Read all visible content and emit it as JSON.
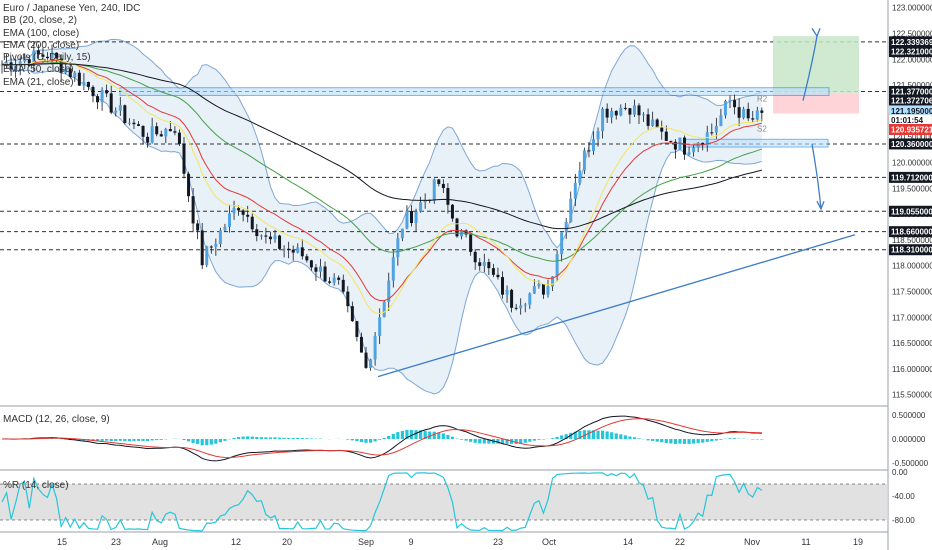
{
  "chart_data": {
    "type": "candlestick",
    "title": "Euro / Japanese Yen, 240, IDC",
    "indicators": [
      "BB (20, close, 2)",
      "EMA (100, close)",
      "EMA (200, close)",
      "Pivots (C, Daily, 15)",
      "EMA (50, close)",
      "EMA (21, close)"
    ],
    "price_axis": {
      "ylim": [
        115.3,
        123.15
      ],
      "ticks": [
        "123.000000",
        "122.500000",
        "122.000000",
        "121.500000",
        "121.000000",
        "120.500000",
        "120.000000",
        "119.500000",
        "119.000000",
        "118.500000",
        "118.000000",
        "117.500000",
        "117.000000",
        "116.500000",
        "116.000000",
        "115.500000"
      ],
      "labels": [
        {
          "text": "122.339369",
          "y": 122.339369,
          "color": "#131722",
          "text_color": "#ffffff"
        },
        {
          "text": "122.321000",
          "y": 122.15,
          "color": "#131722",
          "text_color": "#ffffff"
        },
        {
          "text": "121.377000",
          "y": 121.377,
          "color": "#131722",
          "text_color": "#ffffff"
        },
        {
          "text": "121.372706",
          "y": 121.2,
          "color": "#131722",
          "text_color": "#ffffff"
        },
        {
          "text": "121.195000",
          "y": 121.0,
          "color": "#b2dfff",
          "text_color": "#131722"
        },
        {
          "text": "01:01:54",
          "y": 120.82,
          "color": "#ffffff",
          "text_color": "#131722"
        },
        {
          "text": "120.935721",
          "y": 120.64,
          "color": "#e53935",
          "text_color": "#ffffff"
        },
        {
          "text": "120.360000",
          "y": 120.36,
          "color": "#131722",
          "text_color": "#ffffff"
        },
        {
          "text": "119.712000",
          "y": 119.712,
          "color": "#131722",
          "text_color": "#ffffff"
        },
        {
          "text": "119.055000",
          "y": 119.055,
          "color": "#131722",
          "text_color": "#ffffff"
        },
        {
          "text": "118.660000",
          "y": 118.66,
          "color": "#131722",
          "text_color": "#ffffff"
        },
        {
          "text": "118.310000",
          "y": 118.31,
          "color": "#131722",
          "text_color": "#ffffff"
        }
      ]
    },
    "x_axis": {
      "ticks": [
        "15",
        "23",
        "Aug",
        "12",
        "20",
        "Sep",
        "9",
        "23",
        "Oct",
        "14",
        "22",
        "Nov",
        "11",
        "19"
      ]
    },
    "horizontal_levels": [
      122.339369,
      121.377,
      120.36,
      119.712,
      119.055,
      118.66,
      118.31
    ],
    "price_path": [
      [
        0,
        121.9
      ],
      [
        10,
        122.1
      ],
      [
        20,
        121.4
      ],
      [
        32,
        120.5
      ],
      [
        38,
        120.7
      ],
      [
        44,
        118.1
      ],
      [
        52,
        119.2
      ],
      [
        58,
        118.5
      ],
      [
        66,
        118.2
      ],
      [
        74,
        117.6
      ],
      [
        80,
        116.0
      ],
      [
        88,
        118.8
      ],
      [
        96,
        119.6
      ],
      [
        100,
        118.7
      ],
      [
        106,
        118.0
      ],
      [
        112,
        117.3
      ],
      [
        120,
        117.6
      ],
      [
        126,
        119.7
      ],
      [
        132,
        121.0
      ],
      [
        138,
        121.1
      ],
      [
        144,
        120.6
      ],
      [
        150,
        120.3
      ],
      [
        156,
        120.6
      ],
      [
        160,
        121.2
      ],
      [
        164,
        120.8
      ],
      [
        167,
        120.9
      ]
    ],
    "pivot_labels": [
      "R2",
      "S2"
    ],
    "macd": {
      "title": "MACD (12, 26, close, 9)",
      "ticks": [
        "0.500000",
        "0.000000",
        "-0.500000"
      ],
      "ylim": [
        -0.65,
        0.65
      ]
    },
    "williams_r": {
      "title": "%R (14, close)",
      "ticks": [
        "0.00",
        "-40.00",
        "-80.00"
      ],
      "ylim": [
        -100,
        0
      ]
    }
  }
}
